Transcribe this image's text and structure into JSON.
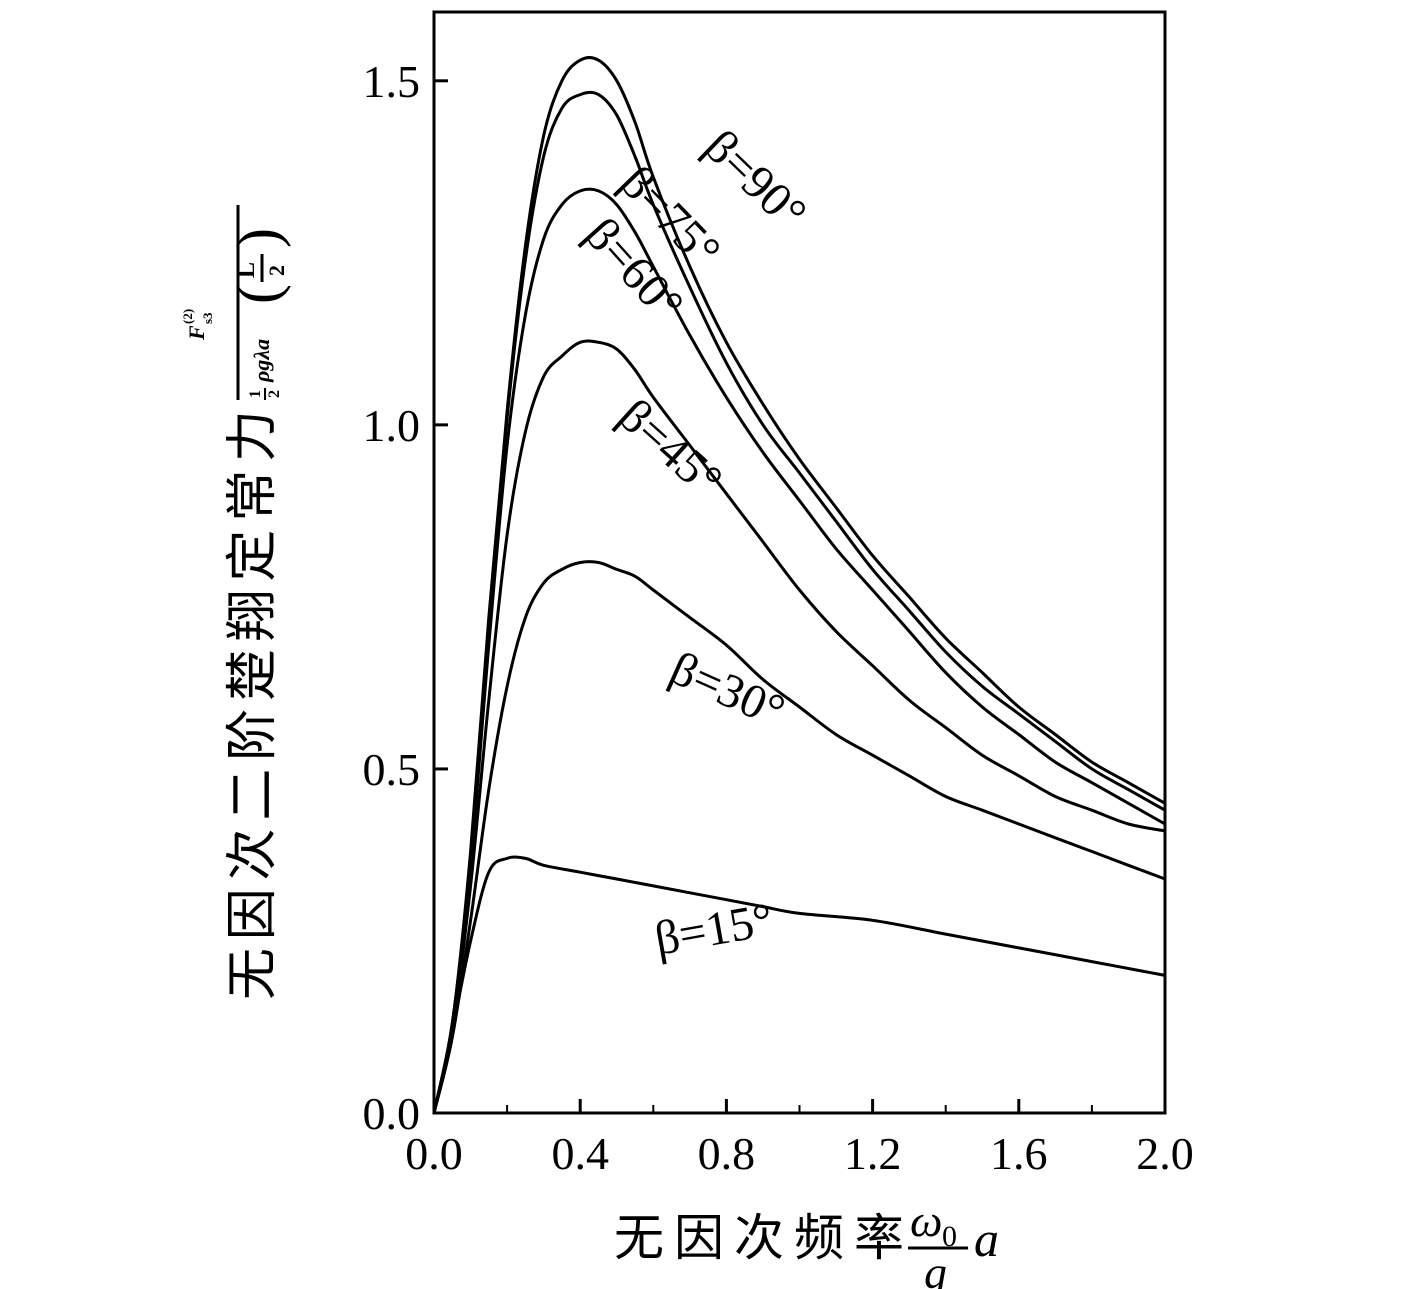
{
  "chart_data": {
    "type": "line",
    "xlabel": "无因次频率",
    "xlabel_math": {
      "numerator": "ω",
      "numerator_sub": "0",
      "denominator": "g",
      "suffix": "a"
    },
    "ylabel": "无因次二阶楚翔定常力",
    "ylabel_math": {
      "numerator": "F",
      "numerator_sub": "s3",
      "numerator_sup": "(2)",
      "denominator_pre": "1",
      "denominator_pre_den": "2",
      "denominator_main": "ρgλa",
      "denominator_paren_num": "L",
      "denominator_paren_den": "2"
    },
    "xlim": [
      0.0,
      2.0
    ],
    "ylim": [
      0.0,
      1.6
    ],
    "x_ticks": [
      "0.0",
      "0.4",
      "0.8",
      "1.2",
      "1.6",
      "2.0"
    ],
    "y_ticks": [
      "0.0",
      "0.5",
      "1.0",
      "1.5"
    ],
    "grid": false,
    "series": [
      {
        "name": "β=90°",
        "x": [
          0,
          0.05,
          0.1,
          0.15,
          0.2,
          0.25,
          0.3,
          0.35,
          0.4,
          0.45,
          0.5,
          0.55,
          0.6,
          0.7,
          0.8,
          0.9,
          1.0,
          1.1,
          1.2,
          1.3,
          1.4,
          1.5,
          1.6,
          1.7,
          1.8,
          1.9,
          2.0
        ],
        "y": [
          0,
          0.13,
          0.38,
          0.72,
          1.02,
          1.26,
          1.42,
          1.5,
          1.53,
          1.53,
          1.5,
          1.44,
          1.36,
          1.23,
          1.12,
          1.03,
          0.95,
          0.88,
          0.81,
          0.75,
          0.69,
          0.64,
          0.59,
          0.55,
          0.51,
          0.48,
          0.45
        ]
      },
      {
        "name": "β=75°",
        "x": [
          0,
          0.05,
          0.1,
          0.15,
          0.2,
          0.25,
          0.3,
          0.35,
          0.4,
          0.45,
          0.5,
          0.55,
          0.6,
          0.7,
          0.8,
          0.9,
          1.0,
          1.1,
          1.2,
          1.3,
          1.4,
          1.5,
          1.6,
          1.7,
          1.8,
          1.9,
          2.0
        ],
        "y": [
          0,
          0.13,
          0.37,
          0.71,
          1.01,
          1.24,
          1.39,
          1.46,
          1.48,
          1.48,
          1.45,
          1.39,
          1.32,
          1.2,
          1.09,
          1.0,
          0.93,
          0.86,
          0.79,
          0.73,
          0.67,
          0.62,
          0.58,
          0.54,
          0.5,
          0.47,
          0.44
        ]
      },
      {
        "name": "β=60°",
        "x": [
          0,
          0.05,
          0.1,
          0.15,
          0.2,
          0.25,
          0.3,
          0.35,
          0.4,
          0.45,
          0.5,
          0.55,
          0.6,
          0.7,
          0.8,
          0.9,
          1.0,
          1.1,
          1.2,
          1.3,
          1.4,
          1.5,
          1.6,
          1.7,
          1.8,
          1.9,
          2.0
        ],
        "y": [
          0,
          0.13,
          0.36,
          0.68,
          0.97,
          1.16,
          1.27,
          1.32,
          1.34,
          1.34,
          1.32,
          1.28,
          1.23,
          1.13,
          1.04,
          0.96,
          0.89,
          0.82,
          0.76,
          0.7,
          0.64,
          0.59,
          0.55,
          0.51,
          0.48,
          0.45,
          0.42
        ]
      },
      {
        "name": "β=45°",
        "x": [
          0,
          0.05,
          0.1,
          0.15,
          0.2,
          0.25,
          0.3,
          0.35,
          0.4,
          0.45,
          0.5,
          0.55,
          0.6,
          0.7,
          0.8,
          0.9,
          1.0,
          1.1,
          1.2,
          1.3,
          1.4,
          1.5,
          1.6,
          1.7,
          1.8,
          1.9,
          2.0
        ],
        "y": [
          0,
          0.12,
          0.33,
          0.6,
          0.84,
          0.99,
          1.07,
          1.1,
          1.12,
          1.12,
          1.11,
          1.08,
          1.04,
          0.97,
          0.9,
          0.83,
          0.76,
          0.7,
          0.65,
          0.6,
          0.56,
          0.52,
          0.49,
          0.46,
          0.44,
          0.42,
          0.41
        ]
      },
      {
        "name": "β=30°",
        "x": [
          0,
          0.05,
          0.1,
          0.15,
          0.2,
          0.25,
          0.3,
          0.35,
          0.4,
          0.45,
          0.5,
          0.55,
          0.6,
          0.7,
          0.8,
          0.9,
          1.0,
          1.1,
          1.2,
          1.3,
          1.4,
          1.5,
          1.6,
          1.7,
          1.8,
          1.9,
          2.0
        ],
        "y": [
          0,
          0.11,
          0.28,
          0.47,
          0.62,
          0.72,
          0.77,
          0.79,
          0.8,
          0.8,
          0.79,
          0.78,
          0.76,
          0.72,
          0.68,
          0.63,
          0.59,
          0.55,
          0.52,
          0.49,
          0.46,
          0.44,
          0.42,
          0.4,
          0.38,
          0.36,
          0.34
        ]
      },
      {
        "name": "β=15°",
        "x": [
          0,
          0.05,
          0.1,
          0.15,
          0.2,
          0.25,
          0.3,
          0.4,
          0.5,
          0.6,
          0.7,
          0.8,
          0.9,
          1.0,
          1.2,
          1.4,
          1.6,
          1.8,
          2.0
        ],
        "y": [
          0,
          0.12,
          0.25,
          0.35,
          0.37,
          0.37,
          0.36,
          0.35,
          0.34,
          0.33,
          0.32,
          0.31,
          0.3,
          0.29,
          0.28,
          0.26,
          0.24,
          0.22,
          0.2
        ]
      }
    ]
  }
}
